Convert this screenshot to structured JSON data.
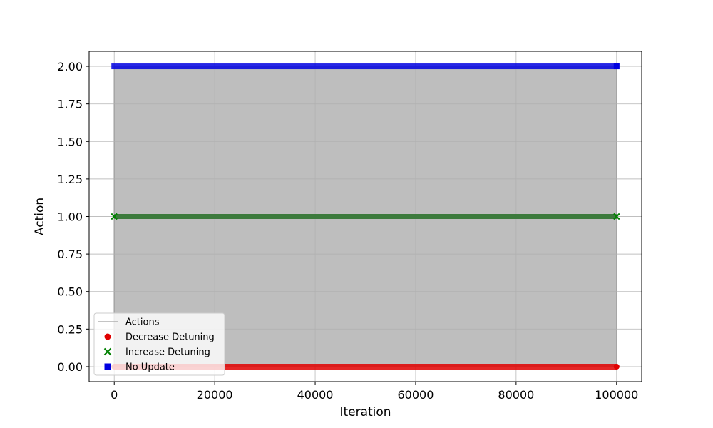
{
  "chart_data": {
    "type": "line",
    "title": "",
    "xlabel": "Iteration",
    "ylabel": "Action",
    "xlim": [
      -5000,
      105000
    ],
    "ylim": [
      -0.1,
      2.1
    ],
    "xticks": [
      0,
      20000,
      40000,
      60000,
      80000,
      100000
    ],
    "xtick_labels": [
      "0",
      "20000",
      "40000",
      "60000",
      "80000",
      "100000"
    ],
    "yticks": [
      0.0,
      0.25,
      0.5,
      0.75,
      1.0,
      1.25,
      1.5,
      1.75,
      2.0
    ],
    "ytick_labels": [
      "0.00",
      "0.25",
      "0.50",
      "0.75",
      "1.00",
      "1.25",
      "1.50",
      "1.75",
      "2.00"
    ],
    "grid": true,
    "legend_position": "lower-left",
    "x_range": [
      0,
      100000
    ],
    "series": [
      {
        "name": "Actions",
        "kind": "line",
        "color": "#808080",
        "note": ""
      },
      {
        "name": "Decrease Detuning",
        "kind": "scatter",
        "marker": "circle",
        "color": "#e00000",
        "value": 0
      },
      {
        "name": "Increase Detuning",
        "kind": "scatter",
        "marker": "x",
        "color": "#008000",
        "value": 1
      },
      {
        "name": "No Update",
        "kind": "scatter",
        "marker": "square",
        "color": "#0000e0",
        "value": 2
      }
    ]
  }
}
